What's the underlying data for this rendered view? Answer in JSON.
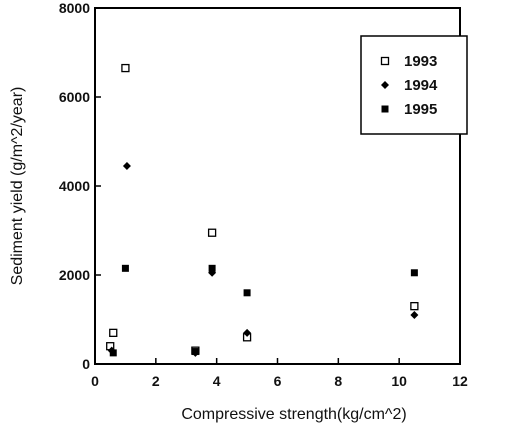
{
  "chart_data": {
    "type": "scatter",
    "title": "",
    "xlabel": "Compressive strength(kg/cm^2)",
    "ylabel": "Sediment yield (g/m^2/year)",
    "xlim": [
      0,
      12
    ],
    "ylim": [
      0,
      8000
    ],
    "x_ticks": [
      "0",
      "2",
      "4",
      "6",
      "8",
      "10",
      "12"
    ],
    "y_ticks": [
      "0",
      "2000",
      "4000",
      "6000",
      "8000"
    ],
    "grid": false,
    "legend_position": "top-right",
    "series": [
      {
        "name": "1993",
        "marker": "open-square",
        "points": [
          {
            "x": 0.5,
            "y": 400
          },
          {
            "x": 0.6,
            "y": 700
          },
          {
            "x": 1.0,
            "y": 6650
          },
          {
            "x": 3.3,
            "y": 300
          },
          {
            "x": 3.85,
            "y": 2950
          },
          {
            "x": 5.0,
            "y": 600
          },
          {
            "x": 10.5,
            "y": 1300
          }
        ]
      },
      {
        "name": "1994",
        "marker": "diamond",
        "points": [
          {
            "x": 0.55,
            "y": 300
          },
          {
            "x": 1.05,
            "y": 4450
          },
          {
            "x": 3.3,
            "y": 250
          },
          {
            "x": 3.85,
            "y": 2050
          },
          {
            "x": 5.0,
            "y": 700
          },
          {
            "x": 10.5,
            "y": 1100
          }
        ]
      },
      {
        "name": "1995",
        "marker": "filled-square",
        "points": [
          {
            "x": 0.6,
            "y": 250
          },
          {
            "x": 1.0,
            "y": 2150
          },
          {
            "x": 3.3,
            "y": 280
          },
          {
            "x": 3.85,
            "y": 2150
          },
          {
            "x": 5.0,
            "y": 1600
          },
          {
            "x": 10.5,
            "y": 2050
          }
        ]
      }
    ]
  }
}
